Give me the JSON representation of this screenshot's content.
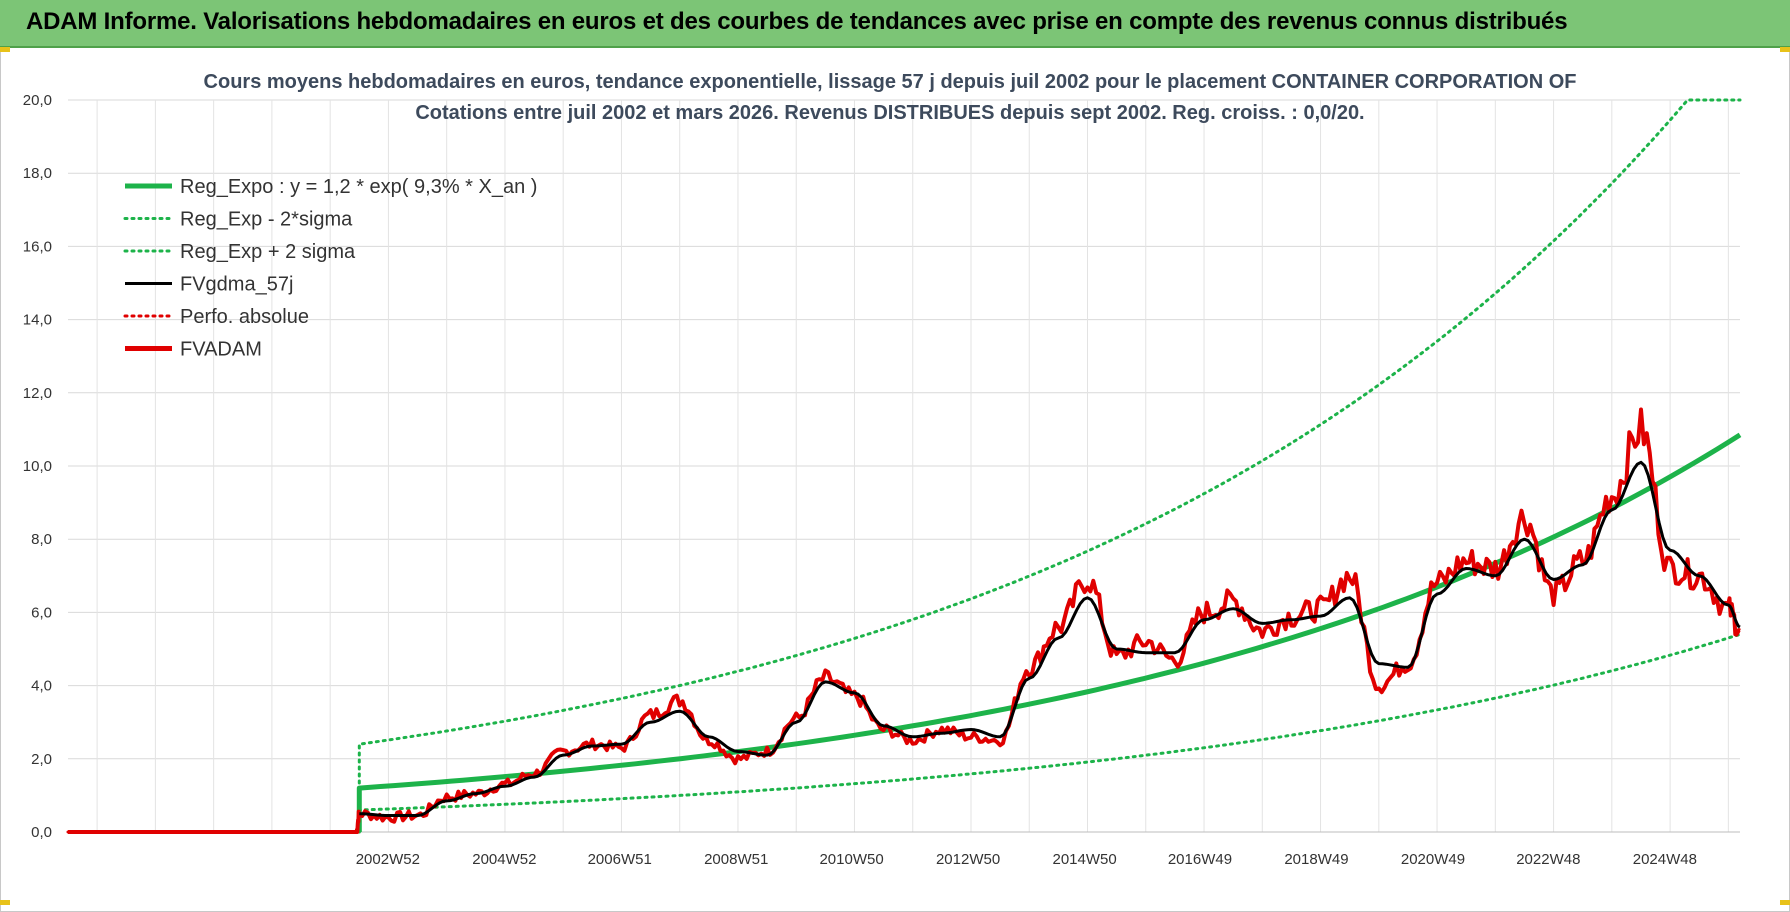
{
  "banner": {
    "title": "ADAM Informe. Valorisations hebdomadaires en euros et des courbes de tendances avec prise en compte des revenus connus distribués"
  },
  "colors": {
    "banner_bg": "#7cc576",
    "regression": "#1db34a",
    "fvadam": "#e00000",
    "fvgdma": "#000000"
  },
  "chart_data": {
    "type": "line",
    "title_lines": [
      "Cours moyens hebdomadaires en euros, tendance exponentielle, lissage 57 j depuis juil 2002 pour le placement CONTAINER CORPORATION OF",
      "Cotations entre juil 2002 et mars  2026. Revenus DISTRIBUES depuis sept 2002. Reg. croiss. : 0,0/20."
    ],
    "ylim": [
      0,
      20
    ],
    "yticks": [
      "0,0",
      "2,0",
      "4,0",
      "6,0",
      "8,0",
      "10,0",
      "12,0",
      "14,0",
      "16,0",
      "18,0",
      "20,0"
    ],
    "xlim": [
      1997.5,
      2026.2
    ],
    "xticks": [
      {
        "label": "2002W52",
        "x": 2002.99
      },
      {
        "label": "2004W52",
        "x": 2004.99
      },
      {
        "label": "2006W51",
        "x": 2006.97
      },
      {
        "label": "2008W51",
        "x": 2008.97
      },
      {
        "label": "2010W50",
        "x": 2010.95
      },
      {
        "label": "2012W50",
        "x": 2012.95
      },
      {
        "label": "2014W50",
        "x": 2014.95
      },
      {
        "label": "2016W49",
        "x": 2016.93
      },
      {
        "label": "2018W49",
        "x": 2018.93
      },
      {
        "label": "2020W49",
        "x": 2020.93
      },
      {
        "label": "2022W48",
        "x": 2022.91
      },
      {
        "label": "2024W48",
        "x": 2024.91
      }
    ],
    "grid": true,
    "legend_position": "top-left",
    "legend": [
      {
        "label": "Reg_Expo : y = 1,2 * exp( 9,3% *  X_an )",
        "series": "reg_expo"
      },
      {
        "label": "Reg_Exp - 2*sigma",
        "series": "reg_minus"
      },
      {
        "label": "Reg_Exp + 2 sigma",
        "series": "reg_plus"
      },
      {
        "label": "FVgdma_57j",
        "series": "fvgdma"
      },
      {
        "label": "Perfo. absolue",
        "series": "perfo"
      },
      {
        "label": "FVADAM",
        "series": "fvadam"
      }
    ],
    "series": [
      {
        "id": "reg_expo",
        "color": "#1db34a",
        "style": "solid-thick",
        "x": [
          2002.5,
          2026.2
        ],
        "y": [
          1.2,
          10.85
        ],
        "kind": "exponential"
      },
      {
        "id": "reg_minus",
        "color": "#1db34a",
        "style": "dotted",
        "x": [
          2002.5,
          2026.2
        ],
        "y": [
          0.6,
          5.4
        ],
        "kind": "exponential"
      },
      {
        "id": "reg_plus",
        "color": "#1db34a",
        "style": "dotted",
        "x": [
          2002.5,
          2025.3,
          2026.2
        ],
        "y": [
          2.4,
          20.0,
          20.0
        ],
        "kind": "exponential-capped"
      },
      {
        "id": "fvgdma",
        "color": "#000000",
        "style": "solid",
        "x": [
          2002.5,
          2003.0,
          2003.5,
          2004.0,
          2004.5,
          2005.0,
          2005.5,
          2006.0,
          2006.5,
          2007.0,
          2007.5,
          2008.0,
          2008.5,
          2009.0,
          2009.5,
          2010.0,
          2010.5,
          2011.0,
          2011.5,
          2012.0,
          2012.5,
          2013.0,
          2013.5,
          2014.0,
          2014.5,
          2015.0,
          2015.5,
          2016.0,
          2016.5,
          2017.0,
          2017.5,
          2018.0,
          2018.5,
          2019.0,
          2019.5,
          2020.0,
          2020.5,
          2021.0,
          2021.5,
          2022.0,
          2022.5,
          2023.0,
          2023.5,
          2024.0,
          2024.5,
          2025.0,
          2025.5,
          2026.0,
          2026.2
        ],
        "y": [
          0.5,
          0.45,
          0.45,
          0.85,
          1.05,
          1.25,
          1.5,
          2.1,
          2.35,
          2.4,
          3.0,
          3.3,
          2.6,
          2.2,
          2.1,
          3.0,
          4.1,
          3.8,
          2.9,
          2.6,
          2.7,
          2.8,
          2.6,
          4.2,
          5.3,
          6.4,
          5.0,
          4.9,
          4.9,
          5.8,
          6.1,
          5.7,
          5.8,
          5.9,
          6.4,
          4.6,
          4.5,
          6.5,
          7.2,
          7.0,
          8.0,
          6.9,
          7.3,
          8.8,
          10.1,
          7.7,
          7.0,
          6.2,
          5.6
        ]
      },
      {
        "id": "perfo",
        "color": "#e00000",
        "style": "dotted",
        "x": [
          1997.5,
          2002.5
        ],
        "y": [
          0.0,
          0.0
        ]
      },
      {
        "id": "fvadam",
        "color": "#e00000",
        "style": "solid-thick",
        "x": [
          1997.5,
          2002.45,
          2002.5,
          2003.0,
          2003.5,
          2004.0,
          2004.5,
          2005.0,
          2005.5,
          2006.0,
          2006.5,
          2007.0,
          2007.5,
          2008.0,
          2008.5,
          2009.0,
          2009.5,
          2010.0,
          2010.5,
          2011.0,
          2011.5,
          2012.0,
          2012.5,
          2013.0,
          2013.5,
          2014.0,
          2014.5,
          2015.0,
          2015.5,
          2016.0,
          2016.5,
          2017.0,
          2017.5,
          2018.0,
          2018.5,
          2019.0,
          2019.5,
          2020.0,
          2020.5,
          2021.0,
          2021.5,
          2022.0,
          2022.5,
          2023.0,
          2023.5,
          2024.0,
          2024.5,
          2025.0,
          2025.5,
          2026.0,
          2026.2
        ],
        "y": [
          0.0,
          0.0,
          0.5,
          0.4,
          0.45,
          0.95,
          1.05,
          1.3,
          1.6,
          2.2,
          2.4,
          2.3,
          3.2,
          3.6,
          2.5,
          2.0,
          2.2,
          3.1,
          4.2,
          3.7,
          2.8,
          2.5,
          2.8,
          2.6,
          2.5,
          4.5,
          5.6,
          6.9,
          4.8,
          5.2,
          4.7,
          6.0,
          6.3,
          5.5,
          5.9,
          6.1,
          7.0,
          4.0,
          4.6,
          6.8,
          7.4,
          7.2,
          8.6,
          6.5,
          7.4,
          9.2,
          11.0,
          7.2,
          7.0,
          6.1,
          5.5
        ]
      }
    ]
  }
}
